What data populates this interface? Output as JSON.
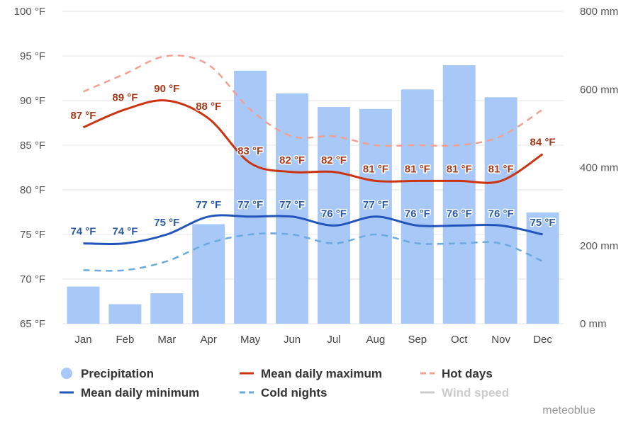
{
  "chart_data": {
    "type": "bar+line",
    "categories": [
      "Jan",
      "Feb",
      "Mar",
      "Apr",
      "May",
      "Jun",
      "Jul",
      "Aug",
      "Sep",
      "Oct",
      "Nov",
      "Dec"
    ],
    "y_left": {
      "min": 65,
      "max": 100,
      "step": 5,
      "unit": "°F",
      "tick_labels": [
        "65 °F",
        "70 °F",
        "75 °F",
        "80 °F",
        "85 °F",
        "90 °F",
        "95 °F",
        "100 °F"
      ]
    },
    "y_right": {
      "min": 0,
      "max": 800,
      "step": 200,
      "unit": "mm",
      "tick_labels": [
        "0 mm",
        "200 mm",
        "400 mm",
        "600 mm",
        "800 mm"
      ]
    },
    "precipitation": {
      "name": "Precipitation",
      "color": "#a8c8f8",
      "values": [
        95,
        50,
        78,
        255,
        648,
        590,
        555,
        550,
        600,
        662,
        580,
        285
      ]
    },
    "mean_max": {
      "name": "Mean daily maximum",
      "color": "#cc3311",
      "values": [
        87,
        89,
        90,
        88,
        83,
        82,
        82,
        81,
        81,
        81,
        81,
        84
      ],
      "labels": [
        "87 °F",
        "89 °F",
        "90 °F",
        "88 °F",
        "83 °F",
        "82 °F",
        "82 °F",
        "81 °F",
        "81 °F",
        "81 °F",
        "81 °F",
        "84 °F"
      ]
    },
    "mean_min": {
      "name": "Mean daily minimum",
      "color": "#2255bb",
      "values": [
        74,
        74,
        75,
        77,
        77,
        77,
        76,
        77,
        76,
        76,
        76,
        75
      ],
      "labels": [
        "74 °F",
        "74 °F",
        "75 °F",
        "77 °F",
        "77 °F",
        "77 °F",
        "76 °F",
        "77 °F",
        "76 °F",
        "76 °F",
        "76 °F",
        "75 °F"
      ]
    },
    "hot_days": {
      "name": "Hot days",
      "color": "#f4a090",
      "values": [
        91,
        93,
        95,
        94,
        89,
        86,
        86,
        85,
        85,
        85,
        86,
        89
      ]
    },
    "cold_nights": {
      "name": "Cold nights",
      "color": "#6aaade",
      "values": [
        71,
        71,
        72,
        74,
        75,
        75,
        74,
        75,
        74,
        74,
        74,
        72
      ]
    },
    "wind_speed": {
      "name": "Wind speed",
      "color": "#cccccc",
      "disabled": true
    },
    "grid": true,
    "legend_position": "bottom"
  },
  "credit": "meteoblue"
}
